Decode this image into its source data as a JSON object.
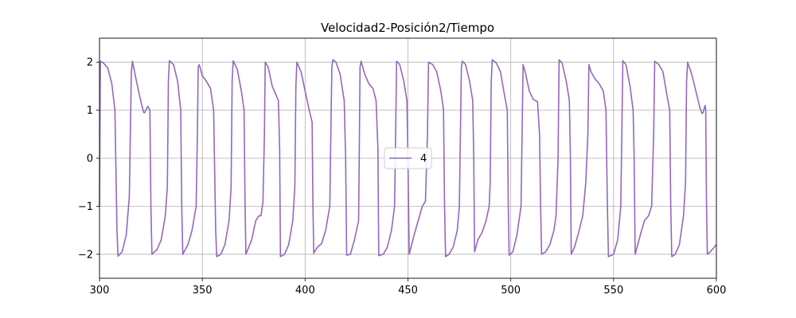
{
  "chart_data": {
    "type": "line",
    "title": "Velocidad2-Posición2/Tiempo",
    "xlabel": "",
    "ylabel": "",
    "xlim": [
      300,
      600
    ],
    "ylim": [
      -2.5,
      2.5
    ],
    "xticks": [
      "300",
      "350",
      "400",
      "450",
      "500",
      "550",
      "600"
    ],
    "xtick_values": [
      300,
      350,
      400,
      450,
      500,
      550,
      600
    ],
    "yticks": [
      "−2",
      "−1",
      "0",
      "1",
      "2"
    ],
    "ytick_values": [
      -2,
      -1,
      0,
      1,
      2
    ],
    "grid": true,
    "legend": "center",
    "series": [
      {
        "name": "4",
        "color": "#9467bd",
        "points": [
          [
            300,
            -1.0
          ],
          [
            300.4,
            2.02
          ],
          [
            302,
            1.98
          ],
          [
            304,
            1.88
          ],
          [
            306,
            1.55
          ],
          [
            307.5,
            1.0
          ],
          [
            308.5,
            -1.5
          ],
          [
            309,
            -2.04
          ],
          [
            311,
            -1.95
          ],
          [
            313,
            -1.6
          ],
          [
            314.5,
            -0.8
          ],
          [
            315.5,
            1.8
          ],
          [
            316,
            2.02
          ],
          [
            318,
            1.6
          ],
          [
            320,
            1.2
          ],
          [
            321.5,
            0.95
          ],
          [
            322,
            0.95
          ],
          [
            322.5,
            1.0
          ],
          [
            323.5,
            1.08
          ],
          [
            324.5,
            1.0
          ],
          [
            325,
            -1.0
          ],
          [
            325.5,
            -2.0
          ],
          [
            328,
            -1.9
          ],
          [
            330,
            -1.7
          ],
          [
            332,
            -1.2
          ],
          [
            333,
            -0.6
          ],
          [
            333.5,
            1.6
          ],
          [
            334,
            2.03
          ],
          [
            336,
            1.95
          ],
          [
            338,
            1.6
          ],
          [
            339.5,
            1.0
          ],
          [
            340,
            -1.0
          ],
          [
            340.5,
            -2.0
          ],
          [
            343,
            -1.8
          ],
          [
            345,
            -1.5
          ],
          [
            347,
            -1.0
          ],
          [
            347.6,
            0.5
          ],
          [
            348,
            1.9
          ],
          [
            348.5,
            1.95
          ],
          [
            350,
            1.72
          ],
          [
            352,
            1.6
          ],
          [
            354,
            1.45
          ],
          [
            355.5,
            1.0
          ],
          [
            356.5,
            -1.5
          ],
          [
            357,
            -2.05
          ],
          [
            359,
            -2.0
          ],
          [
            361,
            -1.8
          ],
          [
            363,
            -1.3
          ],
          [
            364,
            -0.6
          ],
          [
            364.5,
            1.6
          ],
          [
            365,
            2.03
          ],
          [
            367,
            1.85
          ],
          [
            369,
            1.4
          ],
          [
            370.3,
            1.0
          ],
          [
            370.8,
            -1.0
          ],
          [
            371.2,
            -2.0
          ],
          [
            374,
            -1.7
          ],
          [
            376,
            -1.3
          ],
          [
            377.5,
            -1.2
          ],
          [
            378.5,
            -1.2
          ],
          [
            379.5,
            -0.9
          ],
          [
            380.2,
            0.5
          ],
          [
            380.6,
            2.0
          ],
          [
            382,
            1.9
          ],
          [
            384,
            1.5
          ],
          [
            386,
            1.3
          ],
          [
            387,
            1.2
          ],
          [
            387.6,
            0.2
          ],
          [
            388,
            -2.05
          ],
          [
            390,
            -2.0
          ],
          [
            392,
            -1.8
          ],
          [
            394,
            -1.3
          ],
          [
            395,
            -0.6
          ],
          [
            395.5,
            1.5
          ],
          [
            396,
            2.0
          ],
          [
            398,
            1.8
          ],
          [
            400,
            1.4
          ],
          [
            402,
            1.0
          ],
          [
            403.4,
            0.75
          ],
          [
            403.8,
            -1.0
          ],
          [
            404.2,
            -1.98
          ],
          [
            406,
            -1.85
          ],
          [
            408,
            -1.78
          ],
          [
            410,
            -1.5
          ],
          [
            412,
            -1.0
          ],
          [
            412.5,
            0.5
          ],
          [
            413,
            1.9
          ],
          [
            413.5,
            2.05
          ],
          [
            415,
            2.0
          ],
          [
            417,
            1.75
          ],
          [
            419,
            1.2
          ],
          [
            419.7,
            0.0
          ],
          [
            420.2,
            -2.02
          ],
          [
            422,
            -2.0
          ],
          [
            424,
            -1.7
          ],
          [
            426,
            -1.3
          ],
          [
            426.3,
            0.0
          ],
          [
            426.7,
            1.9
          ],
          [
            427.2,
            2.02
          ],
          [
            429,
            1.75
          ],
          [
            431,
            1.55
          ],
          [
            433,
            1.45
          ],
          [
            434.5,
            1.2
          ],
          [
            435.4,
            0.2
          ],
          [
            435.8,
            -2.03
          ],
          [
            438,
            -2.0
          ],
          [
            440,
            -1.85
          ],
          [
            442,
            -1.5
          ],
          [
            443.5,
            -1.0
          ],
          [
            444,
            0.5
          ],
          [
            444.5,
            2.02
          ],
          [
            446,
            1.95
          ],
          [
            448,
            1.6
          ],
          [
            449.5,
            1.2
          ],
          [
            450,
            0.0
          ],
          [
            450.6,
            -2.0
          ],
          [
            453,
            -1.6
          ],
          [
            455,
            -1.3
          ],
          [
            457,
            -1.0
          ],
          [
            458.5,
            -0.9
          ],
          [
            459.5,
            0.5
          ],
          [
            460,
            2.0
          ],
          [
            462,
            1.95
          ],
          [
            464,
            1.8
          ],
          [
            466,
            1.4
          ],
          [
            467.3,
            1.0
          ],
          [
            467.8,
            -1.0
          ],
          [
            468.3,
            -2.05
          ],
          [
            470,
            -2.0
          ],
          [
            472,
            -1.85
          ],
          [
            474,
            -1.5
          ],
          [
            475,
            -1.0
          ],
          [
            475.5,
            0.5
          ],
          [
            476,
            1.9
          ],
          [
            476.5,
            2.02
          ],
          [
            478,
            1.95
          ],
          [
            480,
            1.6
          ],
          [
            481.5,
            1.2
          ],
          [
            482,
            0.0
          ],
          [
            482.4,
            -1.95
          ],
          [
            484,
            -1.7
          ],
          [
            486,
            -1.55
          ],
          [
            488,
            -1.3
          ],
          [
            489.5,
            -1.0
          ],
          [
            490,
            -0.5
          ],
          [
            490.5,
            1.6
          ],
          [
            491,
            2.05
          ],
          [
            493,
            1.98
          ],
          [
            495,
            1.8
          ],
          [
            497,
            1.3
          ],
          [
            498.3,
            1.0
          ],
          [
            498.8,
            -1.0
          ],
          [
            499.2,
            -2.02
          ],
          [
            501,
            -1.95
          ],
          [
            503,
            -1.6
          ],
          [
            505,
            -1.0
          ],
          [
            505.5,
            0.5
          ],
          [
            506,
            1.95
          ],
          [
            507,
            1.8
          ],
          [
            509,
            1.4
          ],
          [
            511,
            1.22
          ],
          [
            513,
            1.18
          ],
          [
            514,
            0.5
          ],
          [
            514.5,
            -1.0
          ],
          [
            515,
            -2.0
          ],
          [
            517,
            -1.95
          ],
          [
            519,
            -1.8
          ],
          [
            521,
            -1.5
          ],
          [
            522,
            -1.2
          ],
          [
            523,
            0.0
          ],
          [
            523.5,
            2.05
          ],
          [
            525,
            1.98
          ],
          [
            527,
            1.6
          ],
          [
            528.5,
            1.2
          ],
          [
            529,
            0.0
          ],
          [
            529.4,
            -2.0
          ],
          [
            531,
            -1.85
          ],
          [
            533,
            -1.55
          ],
          [
            535,
            -1.2
          ],
          [
            536.5,
            -0.5
          ],
          [
            537.5,
            0.5
          ],
          [
            538,
            1.95
          ],
          [
            539,
            1.8
          ],
          [
            541,
            1.65
          ],
          [
            543,
            1.55
          ],
          [
            545,
            1.4
          ],
          [
            546.3,
            1.0
          ],
          [
            547,
            -1.0
          ],
          [
            547.5,
            -2.05
          ],
          [
            550,
            -2.0
          ],
          [
            552,
            -1.7
          ],
          [
            553.5,
            -1.0
          ],
          [
            554,
            0.5
          ],
          [
            554.5,
            2.03
          ],
          [
            556,
            1.95
          ],
          [
            558,
            1.5
          ],
          [
            559.5,
            1.0
          ],
          [
            560,
            0.0
          ],
          [
            560.5,
            -2.0
          ],
          [
            563,
            -1.6
          ],
          [
            565,
            -1.3
          ],
          [
            567,
            -1.2
          ],
          [
            568.5,
            -1.0
          ],
          [
            569.5,
            0.5
          ],
          [
            570,
            2.02
          ],
          [
            572,
            1.95
          ],
          [
            574,
            1.8
          ],
          [
            576,
            1.3
          ],
          [
            577.3,
            1.0
          ],
          [
            577.8,
            -1.0
          ],
          [
            578.3,
            -2.05
          ],
          [
            580,
            -2.0
          ],
          [
            582,
            -1.8
          ],
          [
            584,
            -1.2
          ],
          [
            585,
            -0.5
          ],
          [
            585.5,
            1.6
          ],
          [
            586,
            2.0
          ],
          [
            588,
            1.75
          ],
          [
            590,
            1.4
          ],
          [
            592,
            1.05
          ],
          [
            593,
            0.93
          ],
          [
            593.5,
            0.95
          ],
          [
            594.5,
            1.1
          ],
          [
            594.8,
            1.0
          ],
          [
            595.2,
            -1.0
          ],
          [
            595.6,
            -2.0
          ],
          [
            597,
            -1.95
          ],
          [
            599,
            -1.85
          ],
          [
            600,
            -1.8
          ]
        ]
      }
    ]
  }
}
